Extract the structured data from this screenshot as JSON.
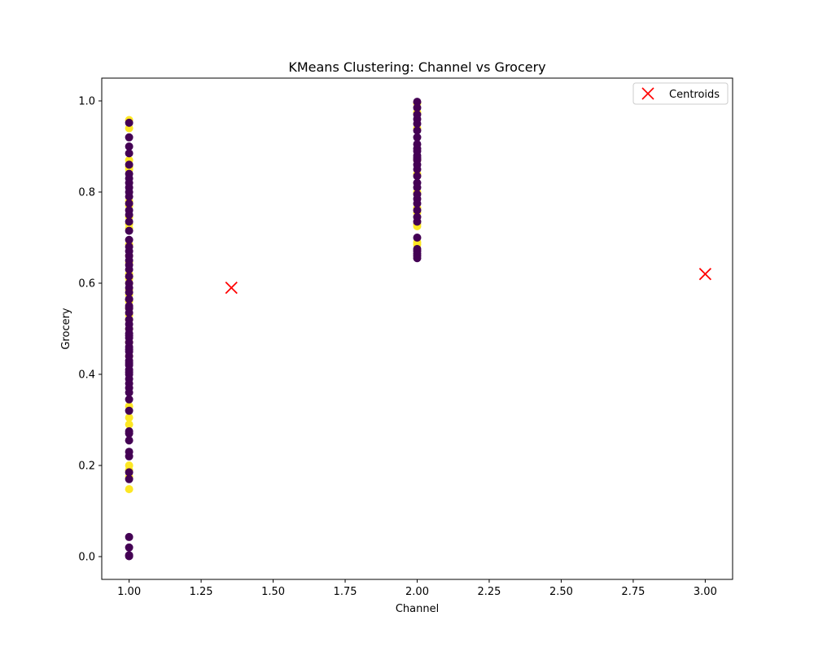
{
  "chart_data": {
    "type": "scatter",
    "title": "KMeans Clustering: Channel vs Grocery",
    "xlabel": "Channel",
    "ylabel": "Grocery",
    "xlim": [
      0.905,
      3.095
    ],
    "ylim": [
      -0.05,
      1.05
    ],
    "xticks": [
      "1.00",
      "1.25",
      "1.50",
      "1.75",
      "2.00",
      "2.25",
      "2.50",
      "2.75",
      "3.00"
    ],
    "yticks": [
      "0.0",
      "0.2",
      "0.4",
      "0.6",
      "0.8",
      "1.0"
    ],
    "grid": false,
    "legend_placement": "top-right",
    "colors": {
      "cluster_0": "#440154",
      "cluster_1": "#fde725",
      "centroid": "#ff0000"
    },
    "series": [
      {
        "cluster": 1,
        "x": [
          1,
          1,
          1,
          1,
          1,
          1,
          1,
          1,
          1,
          1,
          1,
          1,
          1,
          1,
          1,
          1,
          1,
          1,
          1,
          1,
          1,
          1,
          1,
          1,
          1,
          1,
          1,
          1,
          1,
          1,
          1,
          1,
          2,
          2,
          2,
          2,
          2,
          2,
          2,
          2,
          2,
          2,
          2,
          2
        ],
        "y": [
          0.958,
          0.94,
          0.87,
          0.855,
          0.85,
          0.78,
          0.77,
          0.745,
          0.73,
          0.72,
          0.685,
          0.66,
          0.645,
          0.62,
          0.61,
          0.6,
          0.585,
          0.575,
          0.56,
          0.545,
          0.53,
          0.5,
          0.33,
          0.305,
          0.29,
          0.2,
          0.19,
          0.175,
          0.148,
          0.52,
          0.47,
          0.44,
          0.995,
          0.975,
          0.94,
          0.87,
          0.84,
          0.8,
          0.765,
          0.755,
          0.73,
          0.725,
          0.69,
          0.685
        ]
      },
      {
        "cluster": 0,
        "x": [
          1,
          1,
          1,
          1,
          1,
          1,
          1,
          1,
          1,
          1,
          1,
          1,
          1,
          1,
          1,
          1,
          1,
          1,
          1,
          1,
          1,
          1,
          1,
          1,
          1,
          1,
          1,
          1,
          1,
          1,
          1,
          1,
          1,
          1,
          1,
          1,
          1,
          1,
          1,
          1,
          1,
          1,
          1,
          1,
          1,
          1,
          1,
          1,
          1,
          1,
          1,
          1,
          1,
          1,
          1,
          1,
          1,
          1,
          1,
          1,
          1,
          1,
          1,
          1,
          1,
          1,
          2,
          2,
          2,
          2,
          2,
          2,
          2,
          2,
          2,
          2,
          2,
          2,
          2,
          2,
          2,
          2,
          2,
          2,
          2,
          2,
          2,
          2,
          2,
          2,
          2,
          2,
          2,
          2,
          2,
          2
        ],
        "y": [
          0.952,
          0.92,
          0.9,
          0.885,
          0.86,
          0.84,
          0.83,
          0.82,
          0.81,
          0.8,
          0.79,
          0.775,
          0.76,
          0.75,
          0.735,
          0.715,
          0.695,
          0.68,
          0.67,
          0.66,
          0.65,
          0.64,
          0.63,
          0.615,
          0.6,
          0.59,
          0.58,
          0.565,
          0.55,
          0.535,
          0.52,
          0.51,
          0.5,
          0.49,
          0.48,
          0.47,
          0.46,
          0.45,
          0.44,
          0.43,
          0.42,
          0.41,
          0.4,
          0.39,
          0.38,
          0.37,
          0.36,
          0.345,
          0.32,
          0.275,
          0.27,
          0.255,
          0.23,
          0.22,
          0.185,
          0.17,
          0.043,
          0.02,
          0.003,
          0.001,
          0.565,
          0.545,
          0.485,
          0.455,
          0.425,
          0.405,
          0.998,
          0.985,
          0.97,
          0.96,
          0.95,
          0.935,
          0.92,
          0.905,
          0.895,
          0.88,
          0.87,
          0.86,
          0.85,
          0.835,
          0.82,
          0.81,
          0.795,
          0.785,
          0.775,
          0.76,
          0.745,
          0.735,
          0.7,
          0.675,
          0.67,
          0.665,
          0.66,
          0.655,
          0.89,
          0.875
        ]
      }
    ],
    "centroids": {
      "name": "Centroids",
      "x": [
        1.355,
        3.0
      ],
      "y": [
        0.59,
        0.62
      ]
    }
  }
}
